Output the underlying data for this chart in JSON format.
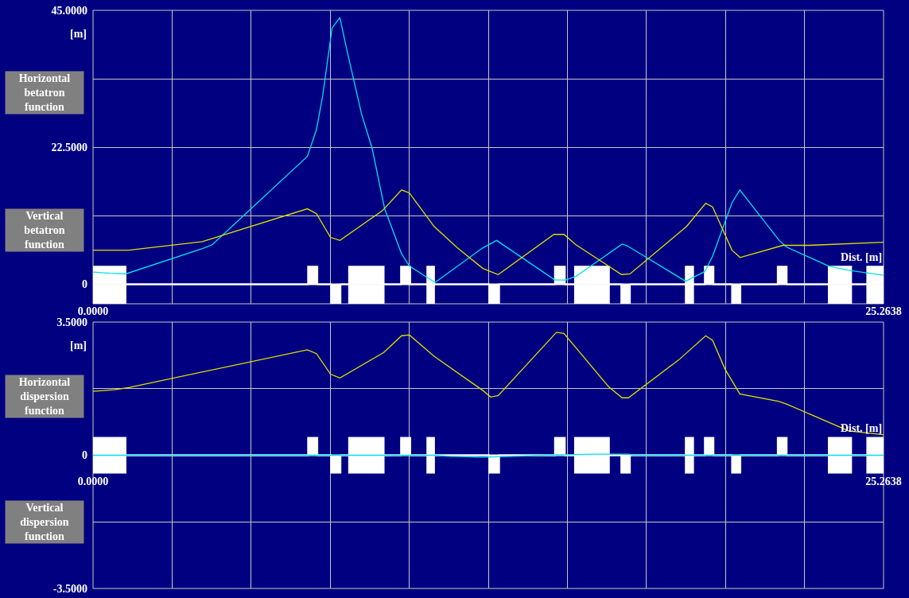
{
  "chart_data": [
    {
      "type": "line",
      "xlabel": "Dist. [m]",
      "ylabel": "[m]",
      "annotations": [
        "Horizontal betatron function",
        "Vertical betatron function"
      ],
      "xlim": [
        0,
        25.2638
      ],
      "xticks": [
        {
          "value": 0,
          "label": "0.0000"
        },
        {
          "value": 2.5264,
          "label": null
        },
        {
          "value": 5.0528,
          "label": null
        },
        {
          "value": 7.5791,
          "label": null
        },
        {
          "value": 10.1055,
          "label": null
        },
        {
          "value": 12.6319,
          "label": null
        },
        {
          "value": 15.1583,
          "label": null
        },
        {
          "value": 17.6847,
          "label": null
        },
        {
          "value": 20.211,
          "label": null
        },
        {
          "value": 22.7374,
          "label": null
        },
        {
          "value": 25.2638,
          "label": "25.2638"
        }
      ],
      "ylim": [
        -3.2,
        45
      ],
      "yticks": [
        0,
        {
          "value": 11.25,
          "label": null
        },
        {
          "value": 22.5,
          "label": "22.5000"
        },
        {
          "value": 33.75,
          "label": null
        },
        {
          "value": 45,
          "label": "45.0000"
        }
      ],
      "grid": true,
      "series": [
        {
          "type": "area",
          "color": "#ffffff",
          "x": [
            0,
            0,
            1.04,
            1.04,
            6.87,
            6.87,
            7.17,
            7.17,
            8.18,
            8.18,
            9.29,
            9.29,
            9.84,
            9.84,
            10.14,
            10.14,
            10.68,
            10.68,
            10.9,
            10.9,
            14.76,
            14.76,
            15.08,
            15.08,
            15.4,
            15.4,
            16.49,
            16.49,
            18.94,
            18.94,
            19.18,
            19.18,
            19.55,
            19.55,
            19.83,
            19.83,
            21.88,
            21.88,
            22.17,
            22.17,
            23.51,
            23.51,
            24.23,
            24.23,
            24.74,
            24.74,
            25.26,
            25.26
          ],
          "values": [
            0,
            2.9,
            2.9,
            0,
            0,
            2.9,
            2.9,
            0,
            0,
            2.9,
            2.9,
            0,
            0,
            2.9,
            2.9,
            0,
            0,
            2.9,
            2.9,
            0,
            0,
            2.9,
            2.9,
            0,
            0,
            2.9,
            2.9,
            0,
            0,
            2.9,
            2.9,
            0,
            0,
            2.9,
            2.9,
            0,
            0,
            2.9,
            2.9,
            0,
            0,
            2.9,
            2.9,
            0,
            0,
            2.9,
            2.9,
            0
          ]
        },
        {
          "type": "area",
          "color": "#ffffff",
          "x": [
            0,
            0,
            1.04,
            1.04,
            7.61,
            7.61,
            7.91,
            7.91,
            8.18,
            8.18,
            9.29,
            9.29,
            10.68,
            10.68,
            10.9,
            10.9,
            12.66,
            12.66,
            12.98,
            12.98,
            15.4,
            15.4,
            16.49,
            16.49,
            16.88,
            16.88,
            17.16,
            17.16,
            18.94,
            18.94,
            19.18,
            19.18,
            20.42,
            20.42,
            20.69,
            20.69,
            23.51,
            23.51,
            24.23,
            24.23,
            24.74,
            24.74,
            25.26,
            25.26
          ],
          "values": [
            0,
            -3.1,
            -3.1,
            0,
            0,
            -3.1,
            -3.1,
            0,
            0,
            -3.1,
            -3.1,
            0,
            0,
            -3.1,
            -3.1,
            0,
            0,
            -3.1,
            -3.1,
            0,
            0,
            -3.1,
            -3.1,
            0,
            0,
            -3.1,
            -3.1,
            0,
            0,
            -3.1,
            -3.1,
            0,
            0,
            -3.1,
            -3.1,
            0,
            0,
            -3.1,
            -3.1,
            0,
            0,
            -3.1,
            -3.1,
            0
          ]
        },
        {
          "color": "#00e0f0",
          "x": [
            0,
            0.54,
            1.04,
            3.51,
            3.81,
            6.85,
            7.14,
            7.34,
            7.64,
            7.89,
            8.08,
            8.58,
            8.92,
            9.32,
            9.86,
            10.11,
            10.93,
            12.46,
            12.9,
            14.76,
            15.1,
            15.43,
            16.91,
            17.08,
            18.94,
            19.55,
            19.8,
            20.42,
            20.67,
            21.93,
            22.17,
            23.51,
            24.15,
            25.26
          ],
          "values": [
            2,
            1.8,
            1.7,
            5.9,
            6.5,
            21,
            25.4,
            31,
            42.1,
            43.8,
            39.2,
            28,
            22.3,
            12.4,
            5,
            3,
            0.3,
            6,
            7.2,
            0.7,
            0.7,
            1.3,
            6.6,
            6.3,
            0.5,
            2.1,
            4.6,
            13.4,
            15.5,
            7.2,
            6.1,
            3,
            2.3,
            1.5
          ]
        },
        {
          "color": "#e0e000",
          "x": [
            0,
            1.14,
            3.49,
            6.85,
            7.14,
            7.59,
            7.89,
            9.25,
            9.86,
            10.11,
            10.9,
            11.64,
            12.46,
            12.95,
            14.73,
            15.05,
            15.43,
            16.89,
            17.16,
            18.97,
            19.58,
            19.8,
            20.42,
            20.68,
            22.05,
            22.89,
            25.26
          ],
          "values": [
            5.6,
            5.6,
            7,
            12.4,
            11.6,
            7.7,
            7.2,
            12.1,
            15.5,
            15,
            9.5,
            6,
            2.6,
            1.6,
            8.2,
            8.2,
            6.5,
            1.6,
            1.7,
            9.5,
            13.3,
            12.7,
            5.6,
            4.4,
            6.4,
            6.4,
            6.9
          ]
        }
      ]
    },
    {
      "type": "line",
      "xlabel": "Dist. [m]",
      "ylabel": "[m]",
      "annotations": [
        "Horizontal dispersion function",
        "Vertical dispersion function"
      ],
      "xlim": [
        0,
        25.2638
      ],
      "xticks": [
        {
          "value": 0,
          "label": "0.0000"
        },
        {
          "value": 2.5264,
          "label": null
        },
        {
          "value": 5.0528,
          "label": null
        },
        {
          "value": 7.5791,
          "label": null
        },
        {
          "value": 10.1055,
          "label": null
        },
        {
          "value": 12.6319,
          "label": null
        },
        {
          "value": 15.1583,
          "label": null
        },
        {
          "value": 17.6847,
          "label": null
        },
        {
          "value": 20.211,
          "label": null
        },
        {
          "value": 22.7374,
          "label": null
        },
        {
          "value": 25.2638,
          "label": "25.2638"
        }
      ],
      "ylim": [
        -3.5,
        3.5
      ],
      "yticks": [
        {
          "value": -3.5,
          "label": "-3.5000"
        },
        {
          "value": -1.75,
          "label": null
        },
        0,
        {
          "value": 1.75,
          "label": null
        },
        {
          "value": 3.5,
          "label": "3.5000"
        }
      ],
      "grid": true,
      "series": [
        {
          "type": "area",
          "color": "#ffffff",
          "x": [
            0,
            0,
            1.04,
            1.04,
            6.87,
            6.87,
            7.17,
            7.17,
            8.18,
            8.18,
            9.29,
            9.29,
            9.84,
            9.84,
            10.14,
            10.14,
            10.68,
            10.68,
            10.9,
            10.9,
            14.76,
            14.76,
            15.08,
            15.08,
            15.4,
            15.4,
            16.49,
            16.49,
            18.94,
            18.94,
            19.18,
            19.18,
            19.55,
            19.55,
            19.83,
            19.83,
            21.88,
            21.88,
            22.17,
            22.17,
            23.51,
            23.51,
            24.23,
            24.23,
            24.74,
            24.74,
            25.26,
            25.26
          ],
          "values": [
            0,
            0.46,
            0.46,
            0,
            0,
            0.46,
            0.46,
            0,
            0,
            0.46,
            0.46,
            0,
            0,
            0.46,
            0.46,
            0,
            0,
            0.46,
            0.46,
            0,
            0,
            0.46,
            0.46,
            0,
            0,
            0.46,
            0.46,
            0,
            0,
            0.46,
            0.46,
            0,
            0,
            0.46,
            0.46,
            0,
            0,
            0.46,
            0.46,
            0,
            0,
            0.46,
            0.46,
            0,
            0,
            0.46,
            0.46,
            0
          ]
        },
        {
          "type": "area",
          "color": "#ffffff",
          "x": [
            0,
            0,
            1.04,
            1.04,
            7.61,
            7.61,
            7.91,
            7.91,
            8.18,
            8.18,
            9.29,
            9.29,
            10.68,
            10.68,
            10.9,
            10.9,
            12.66,
            12.66,
            12.98,
            12.98,
            15.4,
            15.4,
            16.49,
            16.49,
            16.88,
            16.88,
            17.16,
            17.16,
            18.94,
            18.94,
            19.18,
            19.18,
            20.42,
            20.42,
            20.69,
            20.69,
            23.51,
            23.51,
            24.23,
            24.23,
            24.74,
            24.74,
            25.26,
            25.26
          ],
          "values": [
            0,
            -0.46,
            -0.46,
            0,
            0,
            -0.46,
            -0.46,
            0,
            0,
            -0.46,
            -0.46,
            0,
            0,
            -0.46,
            -0.46,
            0,
            0,
            -0.46,
            -0.46,
            0,
            0,
            -0.46,
            -0.46,
            0,
            0,
            -0.46,
            -0.46,
            0,
            0,
            -0.46,
            -0.46,
            0,
            0,
            -0.46,
            -0.46,
            0,
            0,
            -0.46,
            -0.46,
            0,
            0,
            -0.46,
            -0.46,
            0
          ]
        },
        {
          "color": "#00e0f0",
          "x": [
            0,
            10.9,
            11.4,
            12.46,
            13.4,
            14.4,
            15.96,
            17.12,
            17.27,
            25.2638
          ],
          "values": [
            0,
            0,
            -0.03,
            -0.05,
            -0.03,
            0,
            0.03,
            0.03,
            0,
            0
          ]
        },
        {
          "color": "#e0e000",
          "x": [
            0,
            0.67,
            1.14,
            6.85,
            7.14,
            7.59,
            7.89,
            9.29,
            9.86,
            10.11,
            10.9,
            12.46,
            12.71,
            12.95,
            14.81,
            15.05,
            16.49,
            16.91,
            17.11,
            18.71,
            19.58,
            19.8,
            20.2,
            20.67,
            21.9,
            22.18,
            24.15,
            25.26
          ],
          "values": [
            1.68,
            1.72,
            1.78,
            2.77,
            2.67,
            2.13,
            2.03,
            2.7,
            3.14,
            3.16,
            2.6,
            1.7,
            1.53,
            1.57,
            3.23,
            3.2,
            1.79,
            1.51,
            1.51,
            2.5,
            3.14,
            3.02,
            2.26,
            1.61,
            1.42,
            1.34,
            0.64,
            0.54
          ]
        }
      ]
    }
  ]
}
